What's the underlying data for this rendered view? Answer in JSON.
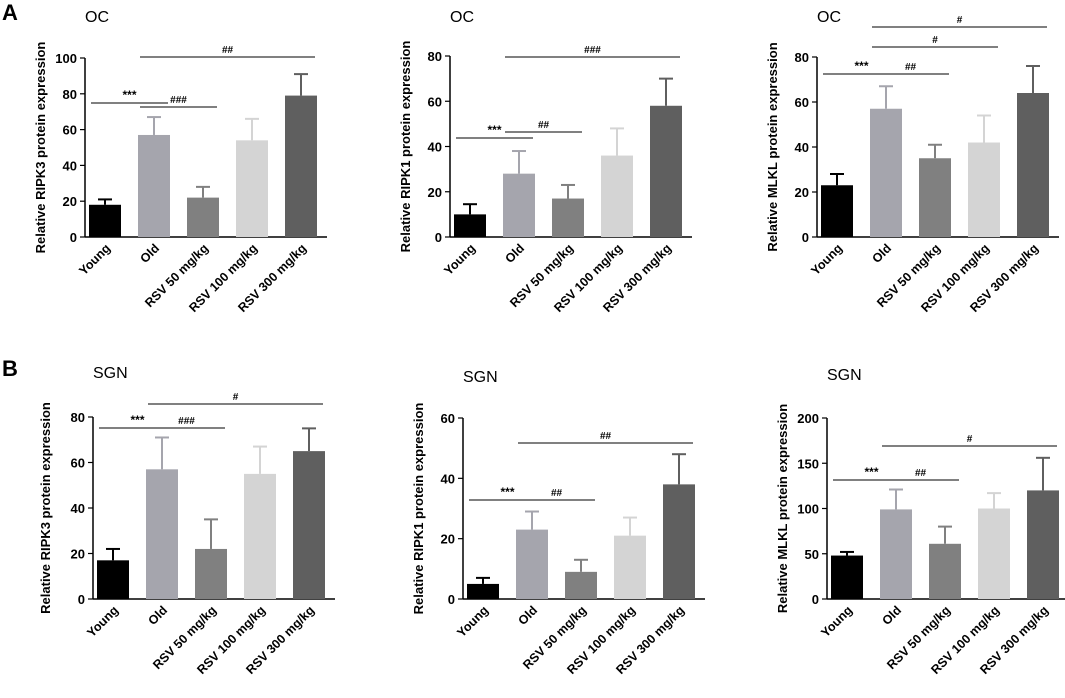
{
  "panels": [
    {
      "letter": "A",
      "group": "OC"
    },
    {
      "letter": "B",
      "group": "SGN"
    }
  ],
  "chart_data": [
    {
      "type": "bar",
      "panel": "A",
      "title": "OC",
      "ylabel": "Relative RIPK3 protein expression",
      "categories": [
        "Young",
        "Old",
        "RSV 50 mg/kg",
        "RSV 100 mg/kg",
        "RSV 300 mg/kg"
      ],
      "values": [
        18,
        57,
        22,
        54,
        79
      ],
      "errors": [
        3,
        10,
        6,
        12,
        12
      ],
      "ylim": [
        0,
        100
      ],
      "yticks": [
        0,
        20,
        40,
        60,
        80,
        100
      ],
      "colors": [
        "#000000",
        "#a5a5ad",
        "#808080",
        "#d4d4d4",
        "#5f5f5f"
      ],
      "significance": [
        {
          "from": 0,
          "to": 1,
          "label": "***"
        },
        {
          "from": 1,
          "to": 2,
          "label": "###"
        },
        {
          "from": 1,
          "to": 4,
          "label": "##"
        }
      ]
    },
    {
      "type": "bar",
      "panel": "A",
      "title": "OC",
      "ylabel": "Relative RIPK1 protein expression",
      "categories": [
        "Young",
        "Old",
        "RSV 50 mg/kg",
        "RSV 100 mg/kg",
        "RSV 300 mg/kg"
      ],
      "values": [
        10,
        28,
        17,
        36,
        58
      ],
      "errors": [
        4.5,
        10,
        6,
        12,
        12
      ],
      "ylim": [
        0,
        80
      ],
      "yticks": [
        0,
        20,
        40,
        60,
        80
      ],
      "colors": [
        "#000000",
        "#a5a5ad",
        "#808080",
        "#d4d4d4",
        "#5f5f5f"
      ],
      "significance": [
        {
          "from": 0,
          "to": 1,
          "label": "***"
        },
        {
          "from": 1,
          "to": 2,
          "label": "##"
        },
        {
          "from": 1,
          "to": 4,
          "label": "###"
        }
      ]
    },
    {
      "type": "bar",
      "panel": "A",
      "title": "OC",
      "ylabel": "Relative MLKL protein expression",
      "categories": [
        "Young",
        "Old",
        "RSV 50 mg/kg",
        "RSV 100 mg/kg",
        "RSV 300 mg/kg"
      ],
      "values": [
        23,
        57,
        35,
        42,
        64
      ],
      "errors": [
        5,
        10,
        6,
        12,
        12
      ],
      "ylim": [
        0,
        80
      ],
      "yticks": [
        0,
        20,
        40,
        60,
        80
      ],
      "colors": [
        "#000000",
        "#a5a5ad",
        "#808080",
        "#d4d4d4",
        "#5f5f5f"
      ],
      "significance": [
        {
          "from": 0,
          "to": 1,
          "label": "***"
        },
        {
          "from": 1,
          "to": 2,
          "label": "##"
        },
        {
          "from": 1,
          "to": 3,
          "label": "#"
        },
        {
          "from": 1,
          "to": 4,
          "label": "#"
        }
      ]
    },
    {
      "type": "bar",
      "panel": "B",
      "title": "SGN",
      "ylabel": "Relative RIPK3 protein expression",
      "categories": [
        "Young",
        "Old",
        "RSV 50 mg/kg",
        "RSV 100 mg/kg",
        "RSV 300 mg/kg"
      ],
      "values": [
        17,
        57,
        22,
        55,
        65
      ],
      "errors": [
        5,
        14,
        13,
        12,
        10
      ],
      "ylim": [
        0,
        80
      ],
      "yticks": [
        0,
        20,
        40,
        60,
        80
      ],
      "colors": [
        "#000000",
        "#a5a5ad",
        "#808080",
        "#d4d4d4",
        "#5f5f5f"
      ],
      "significance": [
        {
          "from": 0,
          "to": 1,
          "label": "***"
        },
        {
          "from": 1,
          "to": 2,
          "label": "###"
        },
        {
          "from": 1,
          "to": 4,
          "label": "#"
        }
      ]
    },
    {
      "type": "bar",
      "panel": "B",
      "title": "SGN",
      "ylabel": "Relative RIPK1 protein expression",
      "categories": [
        "Young",
        "Old",
        "RSV 50 mg/kg",
        "RSV 100 mg/kg",
        "RSV 300 mg/kg"
      ],
      "values": [
        5,
        23,
        9,
        21,
        38
      ],
      "errors": [
        2,
        6,
        4,
        6,
        10
      ],
      "ylim": [
        0,
        60
      ],
      "yticks": [
        0,
        20,
        40,
        60
      ],
      "colors": [
        "#000000",
        "#a5a5ad",
        "#808080",
        "#d4d4d4",
        "#5f5f5f"
      ],
      "significance": [
        {
          "from": 0,
          "to": 1,
          "label": "***"
        },
        {
          "from": 1,
          "to": 2,
          "label": "##"
        },
        {
          "from": 1,
          "to": 4,
          "label": "##"
        }
      ]
    },
    {
      "type": "bar",
      "panel": "B",
      "title": "SGN",
      "ylabel": "Relative MLKL protein expression",
      "categories": [
        "Young",
        "Old",
        "RSV 50 mg/kg",
        "RSV 100 mg/kg",
        "RSV 300 mg/kg"
      ],
      "values": [
        48,
        99,
        61,
        100,
        120
      ],
      "errors": [
        4,
        22,
        19,
        17,
        36
      ],
      "ylim": [
        0,
        200
      ],
      "yticks": [
        0,
        50,
        100,
        150,
        200
      ],
      "colors": [
        "#000000",
        "#a5a5ad",
        "#808080",
        "#d4d4d4",
        "#5f5f5f"
      ],
      "significance": [
        {
          "from": 0,
          "to": 1,
          "label": "***"
        },
        {
          "from": 1,
          "to": 2,
          "label": "##"
        },
        {
          "from": 1,
          "to": 4,
          "label": "#"
        }
      ]
    }
  ]
}
